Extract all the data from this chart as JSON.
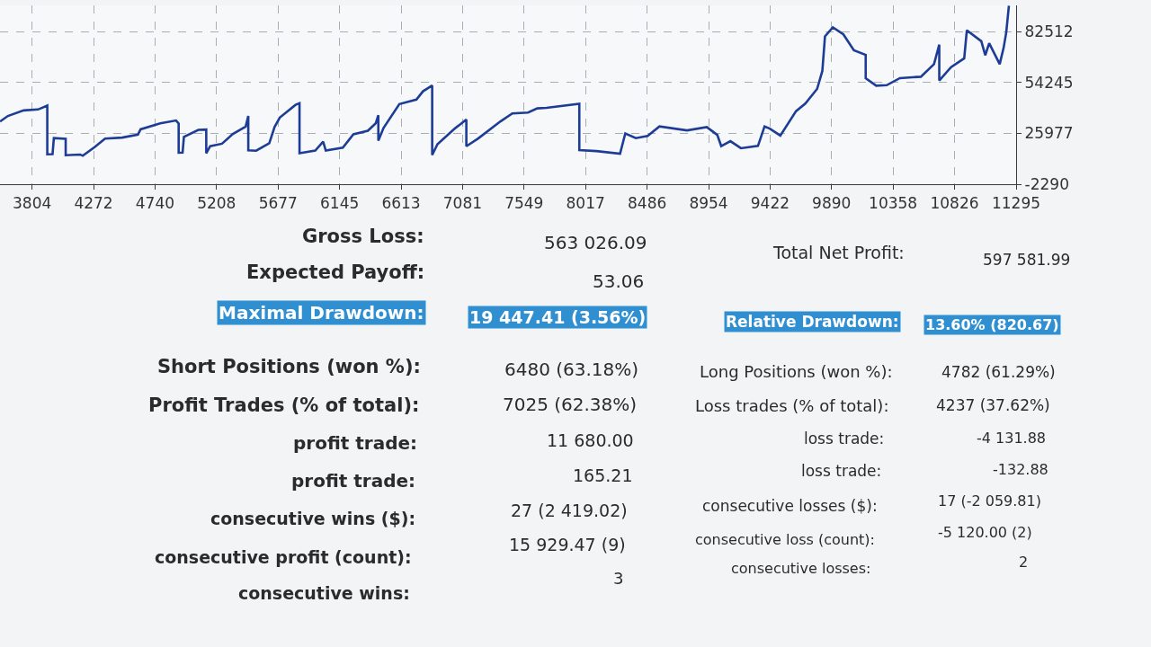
{
  "chart_data": {
    "type": "line",
    "color": "#1d3c96",
    "grid": true,
    "xlim": [
      3560,
      11295
    ],
    "xticks": [
      3804,
      4272,
      4740,
      5208,
      5677,
      6145,
      6613,
      7081,
      7549,
      8017,
      8486,
      8954,
      9422,
      9890,
      10358,
      10826,
      11295
    ],
    "ylim": [
      -2290,
      97000
    ],
    "yticks": [
      -2290,
      25977,
      54245,
      82512
    ],
    "x": [
      3560,
      3620,
      3740,
      3850,
      3920,
      3920,
      3960,
      3970,
      4060,
      4060,
      4170,
      4190,
      4280,
      4360,
      4490,
      4610,
      4630,
      4780,
      4900,
      4920,
      4920,
      4950,
      4960,
      5070,
      5130,
      5130,
      5160,
      5250,
      5330,
      5430,
      5450,
      5450,
      5510,
      5610,
      5650,
      5690,
      5810,
      5840,
      5840,
      5960,
      6020,
      6040,
      6170,
      6250,
      6360,
      6420,
      6440,
      6440,
      6480,
      6600,
      6730,
      6780,
      6850,
      6850,
      6890,
      7020,
      7110,
      7110,
      7200,
      7370,
      7460,
      7580,
      7650,
      7720,
      7970,
      7970,
      8100,
      8280,
      8320,
      8400,
      8490,
      8580,
      8790,
      8940,
      9020,
      9050,
      9120,
      9200,
      9330,
      9380,
      9420,
      9500,
      9620,
      9690,
      9780,
      9820,
      9840,
      9900,
      9980,
      10060,
      10150,
      10150,
      10230,
      10310,
      10410,
      10570,
      10670,
      10710,
      10710,
      10800,
      10900,
      10920,
      11030,
      11060,
      11090,
      11170,
      11200,
      11220,
      11240
    ],
    "values": [
      32500,
      35600,
      38700,
      39200,
      41400,
      14300,
      14400,
      23300,
      22900,
      13800,
      14200,
      13500,
      18300,
      23000,
      23600,
      25200,
      28200,
      31500,
      33100,
      31400,
      15200,
      15300,
      24000,
      27900,
      28100,
      14900,
      18800,
      20200,
      25500,
      29700,
      35600,
      16500,
      16300,
      20500,
      29500,
      34700,
      41800,
      42700,
      14900,
      16400,
      21300,
      16400,
      18000,
      25400,
      27400,
      31500,
      36000,
      21900,
      29000,
      42200,
      44700,
      49300,
      52500,
      13900,
      19900,
      28500,
      33600,
      18800,
      23100,
      32600,
      37000,
      37500,
      39800,
      40100,
      42400,
      16600,
      16100,
      14600,
      25900,
      23300,
      24500,
      29800,
      27600,
      29400,
      25100,
      18900,
      21600,
      17700,
      19000,
      29800,
      28600,
      24700,
      38300,
      42500,
      50600,
      60600,
      79800,
      84800,
      80900,
      72100,
      69500,
      56500,
      52400,
      52700,
      56600,
      57400,
      64400,
      75200,
      55300,
      62700,
      67600,
      83200,
      77100,
      69300,
      76000,
      64400,
      73500,
      82100,
      96800
    ],
    "annotations": [
      "Gross Loss:",
      "563 026.09",
      "Total Net Profit:",
      "597 581.99",
      "Expected Payoff:",
      "53.06",
      "Maximal Drawdown:",
      "19 447.41 (3.56%)",
      "Relative Drawdown:",
      "13.60% (820.67)",
      "Short Positions (won %):",
      "6480 (63.18%)",
      "Long Positions (won %):",
      "4782 (61.29%)",
      "Profit Trades (% of total):",
      "7025 (62.38%)",
      "Loss trades (% of total):",
      "4237 (37.62%)",
      "profit trade:",
      "11 680.00",
      "loss trade:",
      "-4 131.88",
      "profit trade:",
      "165.21",
      "loss trade:",
      "-132.88",
      "consecutive wins ($):",
      "27 (2 419.02)",
      "consecutive losses ($):",
      "17 (-2 059.81)",
      "consecutive profit (count):",
      "15 929.47 (9)",
      "consecutive loss (count):",
      "-5 120.00 (2)",
      "consecutive wins:",
      "3",
      "consecutive losses:",
      "2"
    ]
  }
}
